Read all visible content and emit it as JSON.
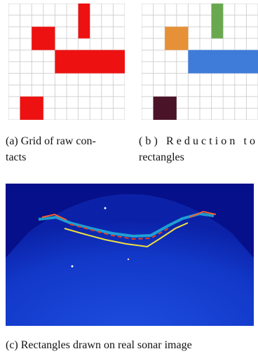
{
  "figure": {
    "captions": [
      {
        "lines": [
          "(a) Grid of raw con-",
          "tacts"
        ]
      },
      {
        "lines": [
          "(b) Reduction to",
          "rectangles"
        ]
      },
      {
        "lines": [
          "(c) Rectangles drawn on real sonar image"
        ]
      }
    ]
  }
}
